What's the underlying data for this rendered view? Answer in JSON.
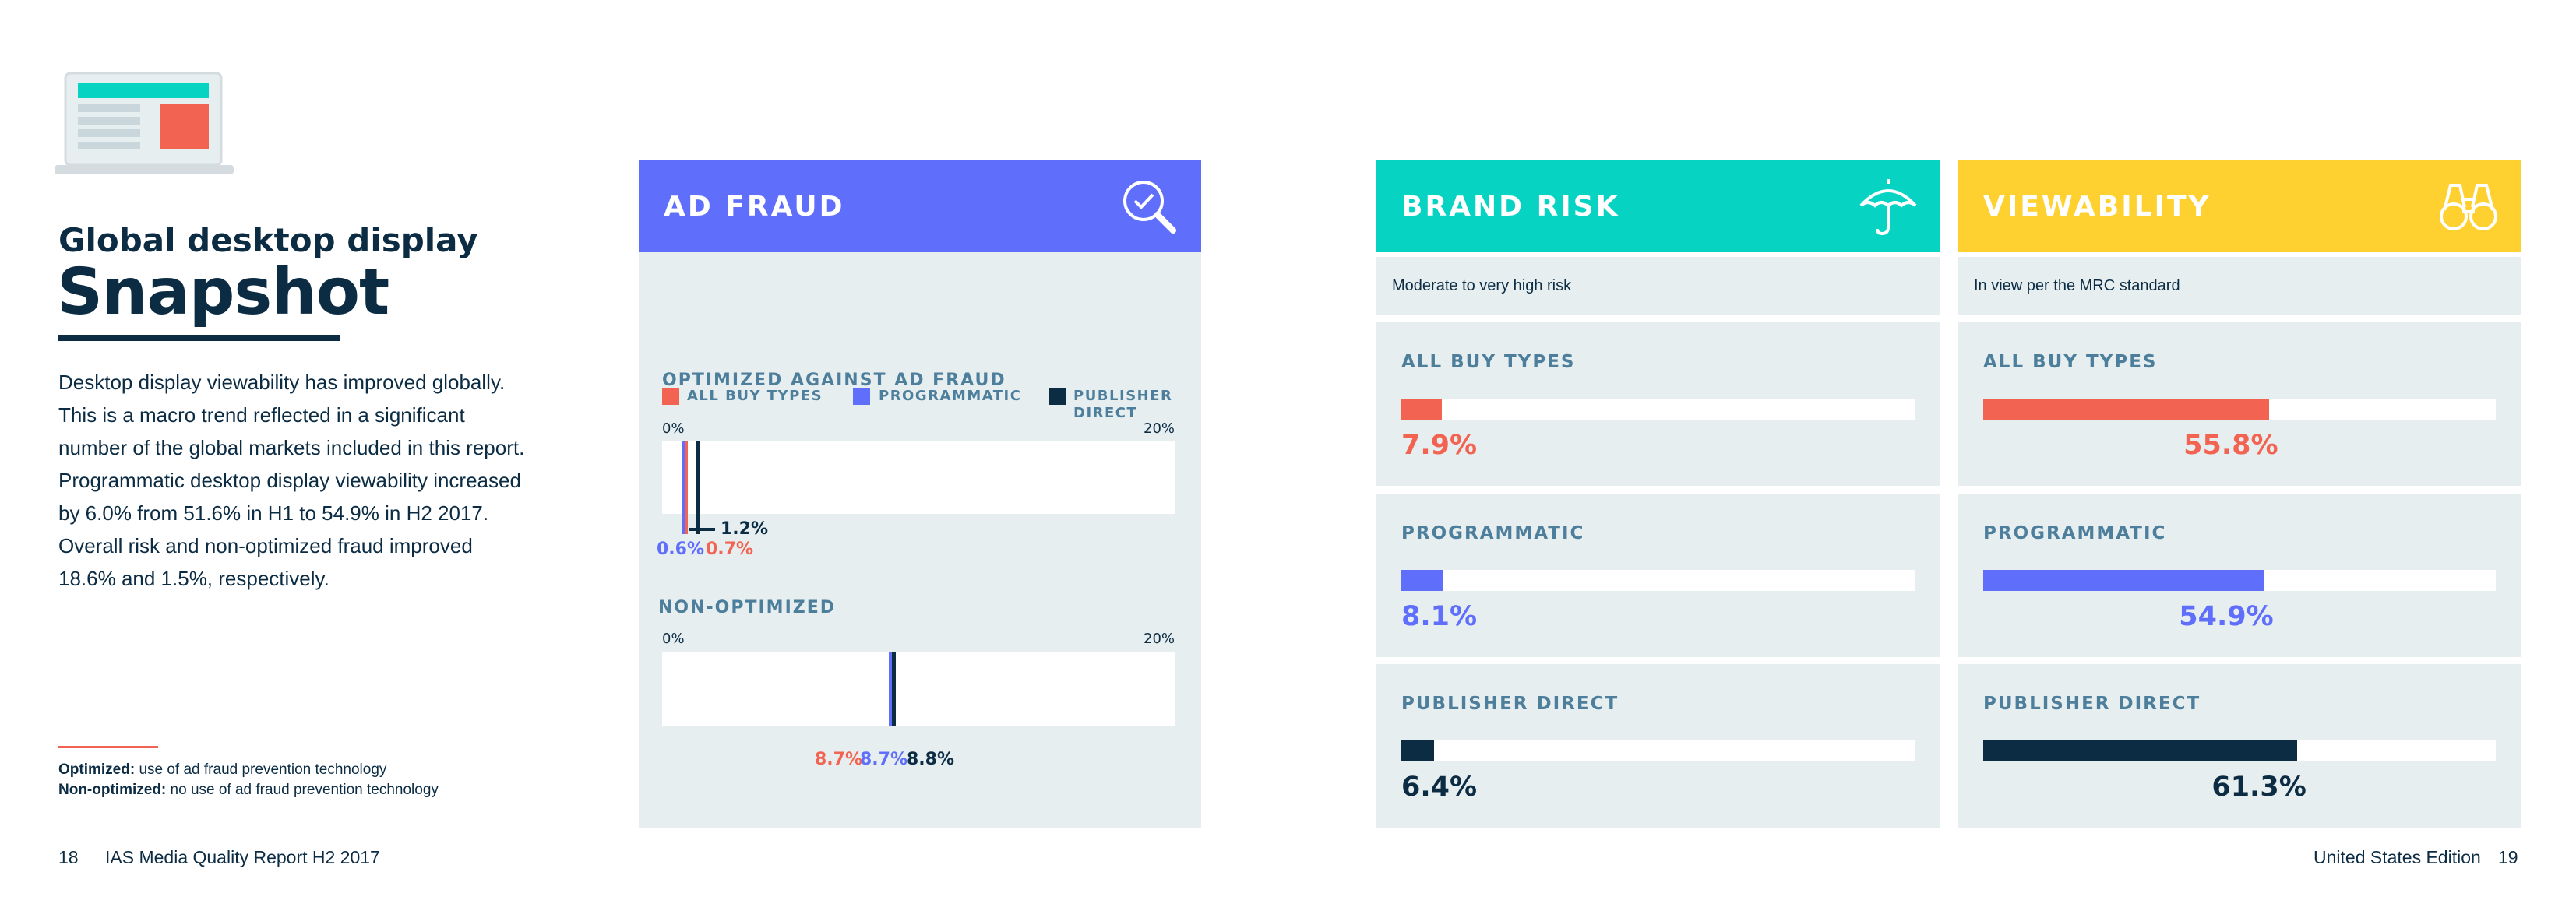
{
  "left": {
    "kicker": "Global desktop display",
    "headline": "Snapshot",
    "intro": "Desktop display viewability has improved globally. This is a macro trend reflected in a significant number of the global markets included in this report. Programmatic desktop display viewability increased by 6.0% from 51.6% in H1 to 54.9% in H2 2017. Overall risk and non-optimized fraud improved 18.6% and 1.5%, respectively.",
    "notes": [
      {
        "term": "Optimized:",
        "text": " use of ad fraud prevention technology"
      },
      {
        "term": "Non-optimized:",
        "text": " no use of ad fraud prevention technology"
      }
    ]
  },
  "footer": {
    "left_page": "18",
    "left_title": "IAS Media Quality Report H2 2017",
    "right_title": "United States Edition",
    "right_page": "19"
  },
  "colors": {
    "all_buy_types": "#f26451",
    "programmatic": "#5f6ffb",
    "publisher_direct": "#0c2c44",
    "ad_fraud_header": "#5f6ffb",
    "brand_risk_header": "#07d3c3",
    "viewability_header": "#fed130",
    "panel_bg": "#e6eef0"
  },
  "ad_fraud": {
    "title": "AD FRAUD",
    "icon": "magnifier-check-icon",
    "legend": [
      "ALL BUY TYPES",
      "PROGRAMMATIC",
      "PUBLISHER DIRECT"
    ],
    "axis_min_label": "0%",
    "axis_max_label": "20%"
  },
  "brand_risk": {
    "title": "BRAND RISK",
    "icon": "umbrella-icon",
    "subtitle": "Moderate to very high risk"
  },
  "viewability": {
    "title": "VIEWABILITY",
    "icon": "binoculars-icon",
    "subtitle": "In view per the MRC standard"
  },
  "chart_data": [
    {
      "type": "bar",
      "title": "OPTIMIZED AGAINST AD FRAUD",
      "categories": [
        "ALL BUY TYPES",
        "PROGRAMMATIC",
        "PUBLISHER DIRECT"
      ],
      "values": [
        0.7,
        0.6,
        1.2
      ],
      "labels": [
        "0.7%",
        "0.6%",
        "1.2%"
      ],
      "xlim": [
        0,
        20
      ]
    },
    {
      "type": "bar",
      "title": "NON-OPTIMIZED",
      "categories": [
        "ALL BUY TYPES",
        "PROGRAMMATIC",
        "PUBLISHER DIRECT"
      ],
      "values": [
        8.7,
        8.7,
        8.8
      ],
      "labels": [
        "8.7%",
        "8.7%",
        "8.8%"
      ],
      "xlim": [
        0,
        20
      ]
    },
    {
      "type": "bar",
      "title": "BRAND RISK",
      "categories": [
        "ALL BUY TYPES",
        "PROGRAMMATIC",
        "PUBLISHER DIRECT"
      ],
      "values": [
        7.9,
        8.1,
        6.4
      ],
      "labels": [
        "7.9%",
        "8.1%",
        "6.4%"
      ],
      "xlim": [
        0,
        100
      ]
    },
    {
      "type": "bar",
      "title": "VIEWABILITY",
      "categories": [
        "ALL BUY TYPES",
        "PROGRAMMATIC",
        "PUBLISHER DIRECT"
      ],
      "values": [
        55.8,
        54.9,
        61.3
      ],
      "labels": [
        "55.8%",
        "54.9%",
        "61.3%"
      ],
      "xlim": [
        0,
        100
      ]
    }
  ]
}
